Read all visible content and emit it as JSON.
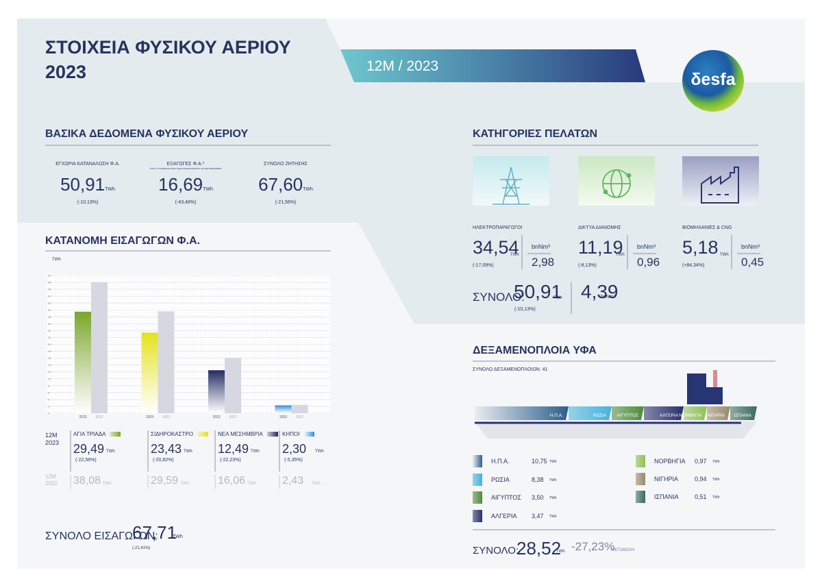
{
  "header": {
    "title_line1": "ΣΤΟΙΧΕΙΑ ΦΥΣΙΚΟΥ ΑΕΡΙΟΥ",
    "title_line2": "2023",
    "period": "12M / 2023",
    "logo": "δesfa"
  },
  "units": {
    "twh": "TWh",
    "bnnm3": "bnNm³"
  },
  "basic": {
    "title": "ΒΑΣΙΚΑ ΔΕΔΟΜΕΝΑ ΦΥΣΙΚΟΥ ΑΕΡΙΟΥ",
    "items": [
      {
        "label": "ΕΓΧΩΡΙΑ ΚΑΤΑΝΑΛΩΣΗ Φ.Α.",
        "value": "50,91",
        "change": "(-10,13%)"
      },
      {
        "label": "ΕΞΑΓΩΓΕΣ Φ.Α.*",
        "note": "*ΟΠΟΥ ΤΑ ΣΗΜΕΙΑ ΕΞΟΔΟΥ ΕΙΝΑΙ ΣΗΜΕΙΑ ΕΙΣΟΔΟΥ ΚΑΙ ΝΕΑ ΜΕΣΗΜΒΡΙΑ",
        "value": "16,69",
        "change": "(-43,48%)"
      },
      {
        "label": "ΣΥΝΟΛΟ ΖΗΤΗΣΗΣ",
        "value": "67,60",
        "change": "(-21,56%)"
      }
    ]
  },
  "customers": {
    "title": "ΚΑΤΗΓΟΡΙΕΣ ΠΕΛΑΤΩΝ",
    "items": [
      {
        "label": "ΗΛΕΚΤΡΟΠΑΡΑΓΩΓΟΙ",
        "value": "34,54",
        "change": "(-17,09%)",
        "volume": "2,98"
      },
      {
        "label": "ΔΙΚΤΥΑ ΔΙΑΝΟΜΗΣ",
        "value": "11,19",
        "change": "(-8,13%)",
        "volume": "0,96"
      },
      {
        "label": "ΒΙΟΜΗΧΑΝΙΕΣ & CNG",
        "value": "5,18",
        "change": "(+84,34%)",
        "volume": "0,45"
      }
    ],
    "total_label": "ΣΥΝΟΛΟ:",
    "total": "50,91",
    "total_change": "(-10,13%)",
    "total_volume": "4,39"
  },
  "imports": {
    "title": "ΚΑΤΑΝΟΜΗ ΕΙΣΑΓΩΓΩΝ Φ.Α.",
    "period": "12M",
    "changes": [
      "(-22,56%)",
      "(-20,82%)",
      "(-22,23%)",
      "(-5,35%)"
    ],
    "total_label": "ΣΥΝΟΛΟ ΕΙΣΑΓΩΓΩΝ:",
    "total": "67,71",
    "total_change": "(-21,41%)"
  },
  "chart_data": {
    "type": "bar",
    "y_label": "TWh",
    "categories": [
      "ΑΓΙΑ ΤΡΙΑΔΑ",
      "ΣΙΔΗΡΟΚΑΣΤΡΟ",
      "ΝΕΑ ΜΕΣΗΜΒΡΙΑ",
      "ΚΗΠΟΙ"
    ],
    "series": [
      {
        "name": "2023",
        "colors": [
          "#79a62a",
          "#e4e21b",
          "#232a62",
          "#2f8de0"
        ],
        "values": [
          29.49,
          23.43,
          12.49,
          2.3
        ],
        "value_labels": [
          "29,49",
          "23,43",
          "12,49",
          "2,30"
        ]
      },
      {
        "name": "2022",
        "color": "#d6d7e1",
        "values": [
          38.08,
          29.59,
          16.06,
          2.43
        ],
        "value_labels": [
          "38,08",
          "29,59",
          "16,06",
          "2,43"
        ]
      }
    ],
    "ylim": [
      0,
      40
    ],
    "yticks": [
      0,
      2,
      4,
      6,
      8,
      10,
      12,
      14,
      16,
      18,
      20,
      22,
      24,
      26,
      28,
      30,
      32,
      34,
      36,
      38,
      40
    ],
    "grid": true
  },
  "lng": {
    "title": "ΔΕΞΑΜΕΝΟΠΛΟΙΑ ΥΦΑ",
    "count_label": "ΣΥΝΟΛΟ ΔΕΞΑΜΕΝΟΠΛΟΙΩΝ: 41",
    "origins": [
      {
        "name": "Η.Π.Α.",
        "value": "10,75",
        "color": "#2d5f8c"
      },
      {
        "name": "ΡΩΣΙΑ",
        "value": "8,38",
        "color": "#45b3df"
      },
      {
        "name": "ΑΙΓΥΠΤΟΣ",
        "value": "3,50",
        "color": "#4f8b3b"
      },
      {
        "name": "ΑΛΓΕΡΙΑ",
        "value": "3,47",
        "color": "#2a2f6b"
      },
      {
        "name": "ΝΟΡΒΗΓΙΑ",
        "value": "0,97",
        "color": "#8dc153"
      },
      {
        "name": "ΝΙΓΗΡΙΑ",
        "value": "0,94",
        "color": "#9a8a6b"
      },
      {
        "name": "ΙΣΠΑΝΙΑ",
        "value": "0,51",
        "color": "#3c6c5b"
      }
    ],
    "total_label": "ΣΥΝΟΛΟ:",
    "total": "28,52",
    "change": "-27,23%",
    "change_label": "ΜΕΤΑΒΟΛΗ"
  }
}
